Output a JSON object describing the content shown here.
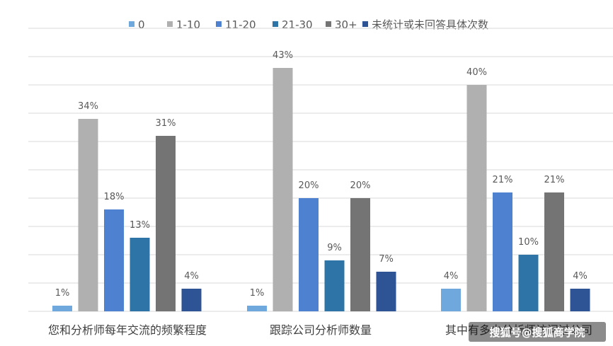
{
  "chart_data": {
    "type": "bar",
    "categories": [
      "您和分析师每年交流的频繁程度",
      "跟踪公司分析师数量",
      "其中有多少分析师访问过公司"
    ],
    "series": [
      {
        "name": "0",
        "color": "#6fa8dc",
        "values": [
          1,
          1,
          4
        ],
        "labels": [
          "1%",
          "1%",
          "4%"
        ]
      },
      {
        "name": "1-10",
        "color": "#b0b0b0",
        "values": [
          34,
          43,
          40
        ],
        "labels": [
          "34%",
          "43%",
          "40%"
        ]
      },
      {
        "name": "11-20",
        "color": "#4f81d1",
        "values": [
          18,
          20,
          21
        ],
        "labels": [
          "18%",
          "20%",
          "21%"
        ]
      },
      {
        "name": "21-30",
        "color": "#2e74a6",
        "values": [
          13,
          9,
          10
        ],
        "labels": [
          "13%",
          "9%",
          "10%"
        ]
      },
      {
        "name": "30+",
        "color": "#747474",
        "values": [
          31,
          20,
          21
        ],
        "labels": [
          "31%",
          "20%",
          "21%"
        ]
      },
      {
        "name": "未统计或未回答具体次数",
        "color": "#2f5496",
        "values": [
          4,
          7,
          4
        ],
        "labels": [
          "4%",
          "7%",
          "4%"
        ]
      }
    ],
    "ylim": [
      0,
      50
    ],
    "grid": true,
    "legend_position": "top",
    "unit": "%"
  },
  "watermark": {
    "text": "搜狐号@搜狐商学院"
  }
}
